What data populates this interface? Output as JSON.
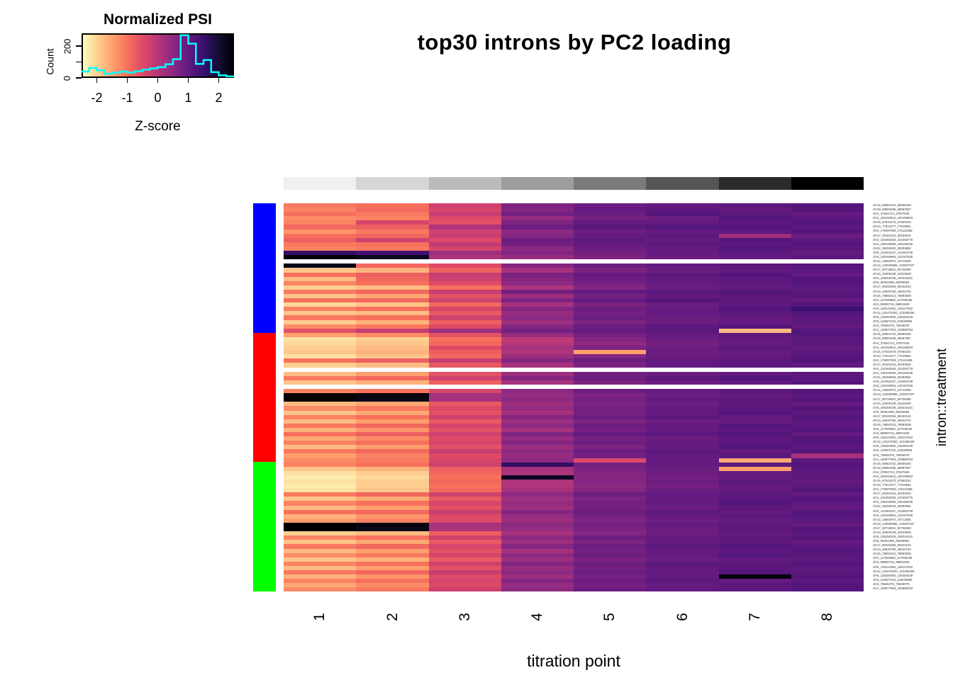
{
  "title": "top30 introns by PC2 loading",
  "background": "#FFFFFF",
  "legend": {
    "title": "Normalized PSI",
    "xlabel": "Z-score",
    "ylabel": "Count",
    "x_tick_z": [
      -2,
      -1,
      0,
      1,
      2
    ],
    "x_tick_labels": [
      "-2",
      "-1",
      "0",
      "1",
      "2"
    ],
    "count_ticks": [
      0,
      100,
      200
    ],
    "count_tick_labels": [
      "0",
      "",
      "200"
    ],
    "count_max": 280,
    "hist_color": "#00FFFF",
    "hist_counts": [
      40,
      62,
      48,
      26,
      33,
      40,
      34,
      42,
      52,
      60,
      68,
      86,
      118,
      268,
      215,
      88,
      112,
      36,
      16,
      10
    ]
  },
  "axes": {
    "xlabel": "titration point",
    "ylabel_right": "intron::treatment",
    "column_labels": [
      "1",
      "2",
      "3",
      "4",
      "5",
      "6",
      "7",
      "8"
    ]
  },
  "chart_data": {
    "type": "heatmap",
    "title": "top30 introns by PC2 loading",
    "xlabel": "titration point",
    "ylabel": "intron::treatment",
    "zlabel": "Normalized PSI (Z-score)",
    "zlim": [
      -2.5,
      2.5
    ],
    "columns": [
      "1",
      "2",
      "3",
      "4",
      "5",
      "6",
      "7",
      "8"
    ],
    "palette": [
      [
        0.0,
        [
          252,
          253,
          191
        ]
      ],
      [
        0.1,
        [
          254,
          206,
          145
        ]
      ],
      [
        0.2,
        [
          254,
          159,
          109
        ]
      ],
      [
        0.3,
        [
          247,
          112,
          92
        ]
      ],
      [
        0.4,
        [
          222,
          73,
          104
        ]
      ],
      [
        0.5,
        [
          183,
          55,
          121
        ]
      ],
      [
        0.6,
        [
          140,
          41,
          129
        ]
      ],
      [
        0.7,
        [
          100,
          26,
          128
        ]
      ],
      [
        0.8,
        [
          59,
          15,
          112
        ]
      ],
      [
        0.9,
        [
          20,
          14,
          54
        ]
      ],
      [
        1.0,
        [
          0,
          0,
          4
        ]
      ]
    ],
    "col_annotation": [
      "#F0F0F0",
      "#D6D6D6",
      "#BBBBBB",
      "#9D9D9D",
      "#7A7A7A",
      "#555555",
      "#2B2B2B",
      "#000000"
    ],
    "row_annotation": [
      {
        "color": "#0000FF",
        "rows": 30
      },
      {
        "color": "#FF0000",
        "rows": 30
      },
      {
        "color": "#00FF00",
        "rows": 30
      }
    ],
    "introns": [
      "chr15_65664722_65665345",
      "chr18_68684485_68687667",
      "chr4_37834724_37837525",
      "chr4_160194612_160195003",
      "chr15_67543470_67550234",
      "chr10_77812377_77819551",
      "chr2_175097593_175111568",
      "chr17_30181016_30184615",
      "chr4_101083263_101093776",
      "chr2_195146055_195156439",
      "chr22_35255933_35283962",
      "chr9_123452347_123454739",
      "chr6_130159964_130167536",
      "chr12_15682972_15713266",
      "chr13_132505886_132507237",
      "chr17_50719831_50736360",
      "chr10_31809128_31810649",
      "chr6_106259106_106316101",
      "chr6_96251095_96256962",
      "chr17_80340356_80343132",
      "chr13_45530780_45534702",
      "chr15_78892313_78893539",
      "chr2_117946882_117948105",
      "chr3_98800716_98801600",
      "chr5_128141981_128147622",
      "chr12_122476292_122480190",
      "chr9_135484082_135484449",
      "chr5_119527219_119529894",
      "chr3_75845379_75849079",
      "chr1_100877903_100888753"
    ],
    "row_label_repeat": 3,
    "values": [
      [
        -1.1,
        -1.0,
        -0.3,
        0.7,
        0.9,
        1.0,
        1.1,
        1.2
      ],
      [
        -1.2,
        -0.9,
        -0.4,
        0.6,
        1.0,
        1.1,
        1.0,
        1.2
      ],
      [
        -1.0,
        -1.1,
        -0.2,
        0.8,
        0.9,
        1.2,
        1.1,
        1.0
      ],
      [
        -1.3,
        -1.2,
        -0.5,
        0.4,
        0.8,
        0.9,
        1.2,
        1.1
      ],
      [
        -1.2,
        -0.4,
        -0.6,
        0.7,
        1.0,
        1.0,
        1.1,
        1.2
      ],
      [
        -0.9,
        -0.8,
        0.1,
        0.9,
        1.1,
        1.2,
        1.2,
        1.1
      ],
      [
        -1.4,
        -1.1,
        -0.3,
        0.5,
        0.9,
        1.0,
        1.1,
        1.2
      ],
      [
        -1.0,
        -0.9,
        -0.2,
        0.6,
        1.0,
        1.1,
        0.3,
        0.9
      ],
      [
        -0.8,
        -0.3,
        -0.5,
        0.9,
        1.1,
        1.0,
        1.2,
        1.1
      ],
      [
        -1.1,
        -1.0,
        -0.1,
        0.8,
        1.0,
        1.1,
        1.1,
        1.2
      ],
      [
        -1.2,
        -1.1,
        -0.4,
        0.5,
        0.9,
        1.0,
        1.2,
        1.1
      ],
      [
        1.6,
        1.4,
        0.3,
        0.6,
        0.8,
        1.0,
        1.1,
        1.0
      ],
      [
        2.4,
        2.2,
        0.1,
        0.4,
        0.7,
        0.9,
        1.0,
        1.1
      ],
      null,
      [
        2.3,
        -0.9,
        -0.5,
        0.6,
        0.9,
        1.0,
        1.1,
        1.2
      ],
      [
        -1.9,
        -1.7,
        -0.8,
        0.2,
        0.7,
        0.9,
        1.0,
        1.1
      ],
      [
        -1.0,
        -0.8,
        -0.2,
        0.7,
        1.0,
        1.1,
        1.2,
        1.0
      ],
      [
        -1.8,
        -0.9,
        -0.3,
        0.6,
        0.9,
        1.0,
        1.1,
        1.2
      ],
      [
        -1.2,
        -1.0,
        -0.5,
        0.5,
        0.8,
        1.0,
        1.1,
        1.2
      ],
      [
        -2.0,
        -1.8,
        -1.0,
        0.1,
        0.6,
        0.9,
        1.0,
        1.1
      ],
      [
        -1.1,
        -0.9,
        -0.2,
        0.8,
        1.0,
        1.1,
        1.2,
        1.1
      ],
      [
        -1.9,
        -1.6,
        -0.6,
        0.3,
        0.8,
        1.0,
        1.1,
        1.2
      ],
      [
        -1.0,
        -0.9,
        -0.3,
        0.7,
        1.0,
        1.2,
        1.1,
        1.0
      ],
      [
        -2.1,
        -1.9,
        -0.9,
        0.2,
        0.7,
        0.9,
        1.1,
        1.2
      ],
      [
        -1.2,
        -1.0,
        -0.4,
        0.6,
        0.9,
        1.0,
        1.2,
        1.5
      ],
      [
        -1.9,
        -1.8,
        -0.7,
        0.4,
        0.8,
        1.0,
        1.1,
        1.2
      ],
      [
        -1.1,
        -1.0,
        -0.3,
        0.5,
        0.9,
        0.9,
        1.0,
        1.1
      ],
      [
        -2.0,
        -1.7,
        -0.8,
        0.3,
        0.7,
        0.9,
        1.0,
        1.1
      ],
      [
        -1.3,
        -1.1,
        -0.5,
        0.6,
        0.9,
        1.1,
        1.2,
        1.0
      ],
      [
        -0.6,
        -0.2,
        0.3,
        0.8,
        1.0,
        1.1,
        -1.8,
        1.2
      ],
      [
        -1.5,
        -1.3,
        -0.6,
        0.4,
        0.8,
        1.0,
        1.1,
        1.2
      ],
      [
        -2.2,
        -2.0,
        -1.0,
        -0.1,
        0.6,
        0.9,
        1.0,
        1.1
      ],
      [
        -2.1,
        -1.9,
        -0.9,
        0.0,
        0.5,
        0.8,
        1.0,
        1.1
      ],
      [
        -2.0,
        -1.8,
        -0.5,
        0.2,
        0.7,
        0.9,
        1.1,
        1.0
      ],
      [
        -1.9,
        -1.7,
        -0.8,
        0.1,
        -1.5,
        0.9,
        1.0,
        1.1
      ],
      [
        -2.2,
        -1.9,
        -0.9,
        0.3,
        0.6,
        0.9,
        1.0,
        1.2
      ],
      [
        -1.0,
        -0.8,
        -0.2,
        0.6,
        0.9,
        1.0,
        1.1,
        1.2
      ],
      [
        -2.0,
        -1.8,
        -0.7,
        0.2,
        0.7,
        1.0,
        1.1,
        1.0
      ],
      null,
      [
        -1.8,
        -1.5,
        -0.6,
        0.3,
        0.8,
        0.9,
        1.0,
        1.1
      ],
      [
        -1.1,
        -0.9,
        -0.3,
        0.6,
        0.9,
        1.1,
        1.2,
        1.1
      ],
      [
        -1.9,
        -1.7,
        -0.8,
        0.2,
        0.7,
        0.9,
        1.0,
        1.2
      ],
      null,
      [
        -1.2,
        -1.0,
        -0.4,
        0.5,
        0.9,
        1.0,
        1.1,
        1.2
      ],
      [
        2.5,
        2.4,
        0.2,
        0.4,
        0.7,
        0.9,
        1.0,
        1.1
      ],
      [
        2.5,
        2.3,
        0.2,
        0.5,
        0.8,
        1.0,
        1.1,
        1.2
      ],
      [
        -1.8,
        -1.6,
        -0.7,
        0.3,
        0.7,
        0.9,
        1.1,
        1.0
      ],
      [
        -1.3,
        -1.1,
        -0.5,
        0.4,
        0.8,
        1.0,
        1.1,
        1.2
      ],
      [
        -1.9,
        -1.6,
        -0.6,
        0.2,
        0.8,
        1.0,
        1.2,
        1.1
      ],
      [
        -1.2,
        -1.0,
        -0.3,
        0.6,
        0.9,
        1.1,
        1.0,
        1.2
      ],
      [
        -1.8,
        -1.5,
        -0.7,
        0.3,
        0.7,
        0.9,
        1.0,
        1.1
      ],
      [
        -1.1,
        -0.9,
        -0.4,
        0.5,
        0.9,
        1.0,
        1.2,
        1.1
      ],
      [
        -1.7,
        -1.4,
        -0.6,
        0.2,
        0.8,
        1.0,
        1.1,
        1.2
      ],
      [
        -1.0,
        -0.8,
        -0.3,
        0.7,
        1.0,
        1.1,
        1.2,
        1.0
      ],
      [
        -1.6,
        -1.3,
        -0.5,
        0.4,
        0.8,
        0.9,
        1.1,
        1.2
      ],
      [
        -1.2,
        -1.0,
        -0.4,
        0.6,
        0.9,
        1.0,
        1.1,
        1.2
      ],
      [
        -1.8,
        -1.5,
        -0.6,
        0.3,
        0.7,
        1.0,
        1.2,
        1.1
      ],
      [
        -1.1,
        -0.9,
        -0.2,
        0.5,
        0.9,
        1.1,
        1.0,
        1.2
      ],
      [
        -1.5,
        -1.2,
        -0.5,
        0.4,
        0.8,
        1.0,
        1.1,
        0.2
      ],
      [
        -1.3,
        -1.1,
        -0.4,
        0.5,
        -0.5,
        1.0,
        -1.6,
        1.1
      ],
      [
        -1.2,
        -1.0,
        -0.3,
        1.6,
        0.8,
        1.0,
        1.1,
        1.2
      ],
      [
        -1.9,
        -1.7,
        -0.8,
        0.2,
        0.7,
        0.9,
        -1.5,
        1.1
      ],
      [
        -2.2,
        -2.0,
        -0.9,
        0.1,
        0.6,
        0.9,
        1.0,
        1.1
      ],
      [
        -2.3,
        -2.1,
        -1.0,
        2.2,
        0.6,
        0.8,
        1.0,
        1.1
      ],
      [
        -2.2,
        -2.0,
        -0.9,
        0.1,
        0.6,
        0.9,
        1.1,
        1.0
      ],
      [
        -2.3,
        -2.0,
        -1.0,
        0.1,
        0.5,
        0.8,
        1.0,
        1.1
      ],
      [
        -2.2,
        -1.9,
        -0.9,
        0.2,
        0.6,
        0.9,
        1.0,
        1.2
      ],
      [
        -1.1,
        -0.9,
        -0.3,
        0.5,
        0.9,
        1.0,
        1.1,
        1.0
      ],
      [
        -1.9,
        -1.6,
        -0.7,
        0.3,
        0.7,
        1.0,
        1.1,
        1.2
      ],
      [
        -1.2,
        -1.0,
        -0.4,
        0.4,
        0.8,
        1.0,
        1.2,
        1.1
      ],
      [
        -1.8,
        -1.5,
        -0.6,
        0.3,
        0.8,
        0.9,
        1.1,
        1.0
      ],
      [
        -1.0,
        -0.9,
        -0.2,
        0.6,
        0.9,
        1.1,
        1.0,
        1.2
      ],
      [
        -1.7,
        -1.4,
        -0.5,
        0.4,
        0.8,
        1.0,
        1.1,
        1.2
      ],
      [
        -1.5,
        -1.2,
        -0.5,
        0.3,
        0.7,
        0.9,
        1.0,
        1.1
      ],
      [
        2.5,
        2.4,
        0.2,
        0.5,
        0.8,
        1.0,
        1.1,
        1.0
      ],
      [
        2.5,
        2.3,
        0.1,
        0.4,
        0.7,
        0.9,
        1.1,
        1.2
      ],
      [
        -2.0,
        -1.8,
        -0.8,
        0.2,
        0.6,
        0.9,
        1.0,
        1.1
      ],
      [
        -1.2,
        -1.0,
        -0.3,
        0.5,
        0.9,
        1.0,
        1.1,
        1.2
      ],
      [
        -1.9,
        -1.6,
        -0.7,
        0.3,
        0.7,
        1.0,
        1.1,
        1.0
      ],
      [
        -1.1,
        -0.9,
        -0.4,
        0.6,
        0.9,
        1.1,
        1.2,
        1.1
      ],
      [
        -1.8,
        -1.5,
        -0.6,
        0.2,
        0.8,
        1.0,
        1.1,
        1.2
      ],
      [
        -1.3,
        -1.1,
        -0.4,
        0.5,
        0.9,
        1.0,
        1.2,
        1.1
      ],
      [
        -1.9,
        -1.7,
        -0.7,
        0.3,
        0.7,
        0.9,
        1.0,
        1.1
      ],
      [
        -1.2,
        -1.0,
        -0.3,
        0.6,
        0.9,
        1.1,
        1.1,
        1.2
      ],
      [
        -1.8,
        -1.5,
        -0.6,
        0.4,
        0.8,
        1.0,
        1.1,
        1.1
      ],
      [
        -1.1,
        -0.9,
        -0.2,
        0.5,
        0.9,
        1.0,
        1.2,
        1.1
      ],
      [
        -1.7,
        -1.4,
        -0.5,
        0.3,
        0.8,
        1.0,
        2.4,
        1.2
      ],
      [
        -1.2,
        -1.0,
        -0.4,
        0.6,
        0.9,
        1.1,
        1.0,
        1.1
      ],
      [
        -1.6,
        -1.3,
        -0.5,
        0.4,
        0.8,
        1.0,
        1.1,
        1.2
      ],
      [
        -1.3,
        -1.1,
        -0.3,
        0.5,
        0.9,
        1.0,
        1.1,
        1.2
      ]
    ]
  }
}
